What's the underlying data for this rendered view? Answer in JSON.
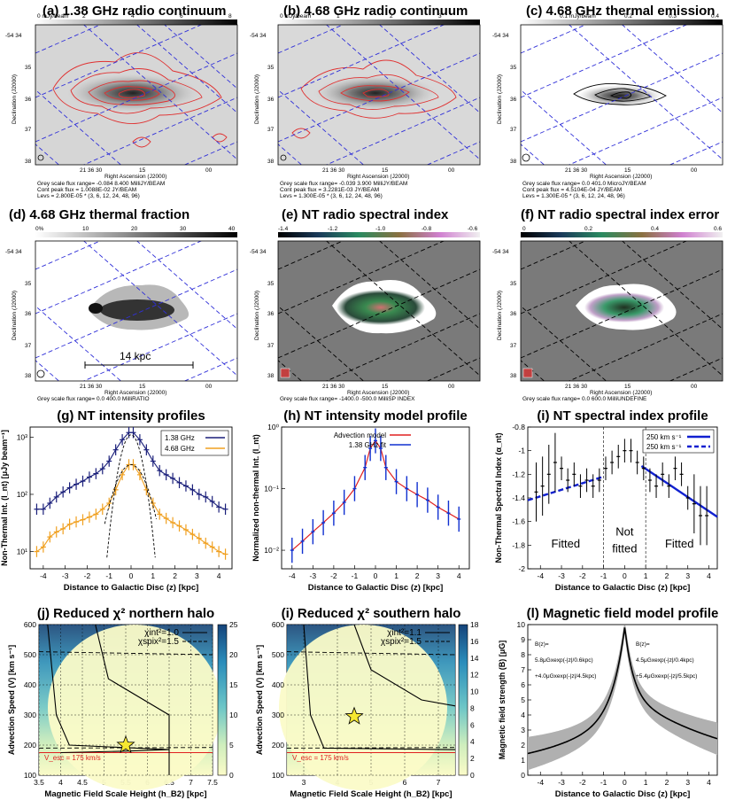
{
  "panels": {
    "a": {
      "title": "(a) 1.38 GHz radio continuum",
      "cbar_unit": "0 mJy/beam",
      "cbar_ticks": [
        "2",
        "4",
        "6",
        "8"
      ],
      "info": [
        "Grey scale flux range= -0.084 8.400 MilliJY/BEAM",
        "Cont peak flux = 1.0088E-02 JY/BEAM",
        "Levs = 2.800E-05 * (3, 6, 12, 24, 48, 96)"
      ]
    },
    "b": {
      "title": "(b) 4.68 GHz radio continuum",
      "cbar_unit": "0 mJy/beam",
      "cbar_ticks": [
        "1",
        "2",
        "3"
      ],
      "info": [
        "Grey scale flux range= -0.039 3.900 MilliJY/BEAM",
        "Cont peak flux = 3.2281E-03 JY/BEAM",
        "Levs = 1.300E-05 * (3, 6, 12, 24, 48, 96)"
      ]
    },
    "c": {
      "title": "(c) 4.68 GHz thermal emission",
      "cbar_unit": "0.1 mJy/beam",
      "cbar_ticks": [
        "0.2",
        "0.3",
        "0.4"
      ],
      "info": [
        "Grey scale flux range= 0.0 401.0 MicroJY/BEAM",
        "Cont peak flux = 4.5104E-04 JY/BEAM",
        "Levs = 1.300E-05 * (3, 6, 12, 24, 48, 96)"
      ]
    },
    "d": {
      "title": "(d) 4.68 GHz thermal fraction",
      "cbar_unit": "0%",
      "cbar_ticks": [
        "10",
        "20",
        "30",
        "40"
      ],
      "info": [
        "Grey scale flux range= 0.0 400.0 MilliRATIO"
      ],
      "scalebar": "14 kpc"
    },
    "e": {
      "title": "(e) NT radio spectral index",
      "cbar_ticks": [
        "-1.4",
        "-1.2",
        "-1.0",
        "-0.8",
        "-0.6"
      ],
      "info": [
        "Grey scale flux range= -1400.0 -500.0 MilliSP INDEX"
      ]
    },
    "f": {
      "title": "(f) NT radio spectral index error",
      "cbar_ticks": [
        "0",
        "0.2",
        "0.4",
        "0.6"
      ],
      "info": [
        "Grey scale flux range= 0.0 600.0 MilliUNDEFINE"
      ]
    }
  },
  "map_axes": {
    "ylabel": "Declination (J2000)",
    "xlabel": "Right Ascension (J2000)",
    "dec_ticks": [
      "-54 34",
      "35",
      "36",
      "37",
      "38"
    ],
    "ra_ticks": [
      "21 36 30",
      "15",
      "00"
    ]
  },
  "chart_data": [
    {
      "id": "g",
      "type": "line",
      "title": "(g) NT intensity profiles",
      "xlabel": "Distance to Galactic Disc (z) [kpc]",
      "ylabel": "Non-Thermal Int. (I_nt) [μJy beam⁻¹]",
      "xlim": [
        -4.6,
        4.6
      ],
      "ylim": [
        5,
        1500
      ],
      "yscale": "log",
      "xticks": [
        "-4",
        "-3",
        "-2",
        "-1",
        "0",
        "1",
        "2",
        "3",
        "4"
      ],
      "yticks": [
        "10¹",
        "10²",
        "10³"
      ],
      "series": [
        {
          "name": "1.38 GHz",
          "color": "#1a1f7a",
          "x": [
            -4.3,
            -4.0,
            -3.7,
            -3.4,
            -3.1,
            -2.8,
            -2.5,
            -2.2,
            -1.9,
            -1.6,
            -1.3,
            -1.0,
            -0.7,
            -0.4,
            -0.1,
            0.1,
            0.4,
            0.7,
            1.0,
            1.3,
            1.6,
            1.9,
            2.2,
            2.5,
            2.8,
            3.1,
            3.4,
            3.7,
            4.0,
            4.3
          ],
          "y": [
            55,
            55,
            70,
            90,
            110,
            130,
            150,
            170,
            200,
            230,
            280,
            380,
            600,
            900,
            1200,
            1200,
            900,
            600,
            380,
            260,
            220,
            190,
            160,
            140,
            120,
            100,
            90,
            75,
            60,
            55
          ]
        },
        {
          "name": "4.68 GHz",
          "color": "#f0a020",
          "x": [
            -4.3,
            -4.0,
            -3.7,
            -3.4,
            -3.1,
            -2.8,
            -2.5,
            -2.2,
            -1.9,
            -1.6,
            -1.3,
            -1.0,
            -0.7,
            -0.4,
            -0.1,
            0.1,
            0.4,
            0.7,
            1.0,
            1.3,
            1.6,
            1.9,
            2.2,
            2.5,
            2.8,
            3.1,
            3.4,
            3.7,
            4.0,
            4.3
          ],
          "y": [
            10,
            12,
            18,
            22,
            25,
            30,
            33,
            36,
            40,
            45,
            55,
            70,
            120,
            220,
            330,
            330,
            220,
            120,
            70,
            45,
            38,
            32,
            28,
            24,
            20,
            17,
            14,
            12,
            10,
            9
          ]
        }
      ]
    },
    {
      "id": "h",
      "type": "line",
      "title": "(h) NT intensity model profile",
      "xlabel": "Distance to Galactic Disc (z) [kpc]",
      "ylabel": "Normalized non-thermal Int. (I_nt)",
      "xlim": [
        -4.5,
        4.5
      ],
      "ylim": [
        0.005,
        1
      ],
      "yscale": "log",
      "xticks": [
        "-4",
        "-3",
        "-2",
        "-1",
        "0",
        "1",
        "2",
        "3",
        "4"
      ],
      "yticks": [
        "10⁻²",
        "10⁻¹",
        "10⁰"
      ],
      "series": [
        {
          "name": "Advection model",
          "color": "#e02020"
        },
        {
          "name": "1.38 GHz fit",
          "color": "#1030d0",
          "x": [
            -4.0,
            -3.5,
            -3.0,
            -2.5,
            -2.0,
            -1.5,
            -1.0,
            -0.5,
            -0.25,
            0.0,
            0.25,
            0.5,
            1.0,
            1.5,
            2.0,
            2.5,
            3.0,
            3.5,
            4.0
          ],
          "y": [
            0.01,
            0.014,
            0.02,
            0.028,
            0.04,
            0.06,
            0.1,
            0.22,
            0.45,
            0.6,
            0.45,
            0.22,
            0.13,
            0.1,
            0.08,
            0.065,
            0.05,
            0.04,
            0.032
          ]
        }
      ]
    },
    {
      "id": "i",
      "type": "scatter",
      "title": "(i) NT spectral index profile",
      "xlabel": "Distance to Galactic Disc (z) [kpc]",
      "ylabel": "Non-Thermal Spectral Index (α_nt)",
      "xlim": [
        -4.6,
        4.4
      ],
      "ylim": [
        -2,
        -0.8
      ],
      "xticks": [
        "-4",
        "-3",
        "-2",
        "-1",
        "0",
        "1",
        "2",
        "3",
        "4"
      ],
      "yticks": [
        "-2",
        "-1.8",
        "-1.6",
        "-1.4",
        "-1.2",
        "-1",
        "-0.8"
      ],
      "regions": [
        "Fitted",
        "Not fitted",
        "Fitted"
      ],
      "legend": [
        "250 km s⁻¹",
        "250 km s⁻¹"
      ],
      "points": {
        "x": [
          -4.2,
          -3.9,
          -3.6,
          -3.3,
          -3.0,
          -2.7,
          -2.4,
          -2.1,
          -1.8,
          -1.5,
          -1.2,
          -0.9,
          -0.6,
          -0.3,
          0.0,
          0.3,
          0.6,
          0.9,
          1.2,
          1.5,
          1.8,
          2.1,
          2.4,
          2.7,
          3.0,
          3.3,
          3.6,
          3.9
        ],
        "y": [
          -1.35,
          -1.3,
          -1.2,
          -1.1,
          -1.15,
          -1.25,
          -1.2,
          -1.3,
          -1.25,
          -1.3,
          -1.25,
          -1.15,
          -1.1,
          -1.05,
          -1.0,
          -1.0,
          -1.1,
          -1.15,
          -1.25,
          -1.3,
          -1.2,
          -1.3,
          -1.15,
          -1.2,
          -1.4,
          -1.45,
          -1.55,
          -1.55
        ]
      }
    },
    {
      "id": "j",
      "type": "heatmap",
      "title": "(j) Reduced χ² northern halo",
      "xlabel": "Magnetic Field Scale Height (h_B2) [kpc]",
      "ylabel": "Advection Speed (V) [km s⁻¹]",
      "xlim": [
        3.5,
        7.5
      ],
      "ylim": [
        100,
        600
      ],
      "xticks": [
        "3.5",
        "4",
        "4.5",
        "5",
        "5.5",
        "6",
        "6.5",
        "7",
        "7.5"
      ],
      "yticks": [
        "100",
        "200",
        "300",
        "400",
        "500",
        "600"
      ],
      "cbar_ticks": [
        "0",
        "5",
        "10",
        "15",
        "20",
        "25"
      ],
      "legend": [
        "χint²=1.0",
        "χspix²=1.5"
      ],
      "vesc_label": "V_esc = 175 km/s",
      "star": {
        "x": 5.5,
        "y": 200
      }
    },
    {
      "id": "k",
      "type": "heatmap",
      "title": "(i) Reduced χ² southern halo",
      "xlabel": "Magnetic Field Scale Height (h_B2) [kpc]",
      "ylabel": "Advection Speed (V) [km s⁻¹]",
      "xlim": [
        2.5,
        7.5
      ],
      "ylim": [
        100,
        600
      ],
      "xticks": [
        "3",
        "4",
        "5",
        "6",
        "7"
      ],
      "yticks": [
        "100",
        "200",
        "300",
        "400",
        "500",
        "600"
      ],
      "cbar_ticks": [
        "0",
        "2",
        "4",
        "6",
        "8",
        "10",
        "12",
        "14",
        "16",
        "18"
      ],
      "legend": [
        "χint²=1.1",
        "χspix²=1.5"
      ],
      "vesc_label": "V_esc = 175 km/s",
      "star": {
        "x": 4.5,
        "y": 295
      }
    },
    {
      "id": "l",
      "type": "line",
      "title": "(l) Magnetic field model profile",
      "xlabel": "Distance to Galactic Disc (z) [kpc]",
      "ylabel": "Magnetic field strength (B) [μG]",
      "xlim": [
        -4.6,
        4.4
      ],
      "ylim": [
        0,
        10
      ],
      "xticks": [
        "-4",
        "-3",
        "-2",
        "-1",
        "0",
        "1",
        "2",
        "3",
        "4"
      ],
      "yticks": [
        "0",
        "1",
        "2",
        "3",
        "4",
        "5",
        "6",
        "7",
        "8",
        "9",
        "10"
      ],
      "annotations": [
        "B(z)=",
        "5.8μGxexp(-|z|/0.6kpc)",
        "+4.0μGxexp(-|z|/4.5kpc)",
        "B(z)=",
        "4.5μGxexp(-|z|/0.4kpc)",
        "+5.4μGxexp(-|z|/5.5kpc)"
      ]
    }
  ]
}
